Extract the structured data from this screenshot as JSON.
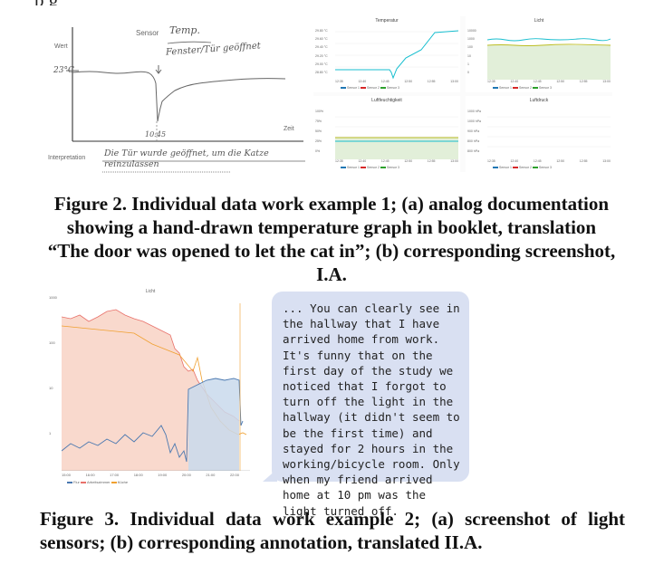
{
  "top_text_fragment": "p                                                                                     g",
  "figure2": {
    "sketch": {
      "sensor_label": "Sensor",
      "sensor_value": "Temp.",
      "annotation": "Fenster/Tür geöffnet",
      "y_axis_label": "Wert",
      "y_value": "23°C",
      "x_axis_label": "Zeit",
      "time_mark": "10:45",
      "interpretation_label": "Interpretation",
      "interpretation_text": "Die Tür wurde geöffnet, um die Katze reinzulassen"
    },
    "screenshot": {
      "panels": [
        {
          "title": "Temperatur",
          "yticks": [
            "29.80 °C",
            "29.60 °C",
            "29.40 °C",
            "29.20 °C",
            "29.00 °C",
            "28.80 °C"
          ],
          "legend": [
            "Sensor 1",
            "Sensor 2",
            "Sensor 3"
          ]
        },
        {
          "title": "Licht",
          "yticks": [
            "10000",
            "1000",
            "100",
            "10",
            "1",
            "0"
          ],
          "legend": [
            "Sensor 1",
            "Sensor 2",
            "Sensor 3"
          ]
        },
        {
          "title": "Luftfeuchtigkeit",
          "yticks": [
            "100%",
            "75%",
            "50%",
            "25%",
            "0%"
          ],
          "legend": [
            "Sensor 1",
            "Sensor 2",
            "Sensor 3"
          ]
        },
        {
          "title": "Luftdruck",
          "yticks": [
            "1000 hPa",
            "1000 hPa",
            "900 hPa",
            "800 hPa",
            "800 hPa"
          ],
          "legend": [
            "Sensor 1",
            "Sensor 2",
            "Sensor 3"
          ]
        }
      ],
      "xticks": [
        "12:35",
        "12:40",
        "12:45",
        "12:50",
        "12:55",
        "13:00"
      ],
      "colors": {
        "sensor1": "#1f77b4",
        "sensor2": "#d62728",
        "sensor3": "#2ca02c",
        "sensor_cyan": "#17becf",
        "sensor_olive": "#bcbd22"
      }
    },
    "caption": "Figure 2. Individual data work example 1; (a) analog documentation showing a hand-drawn temperature graph in booklet, translation “The door was opened to let the cat in”; (b) corresponding screenshot, I.A."
  },
  "figure3": {
    "chart": {
      "title": "Licht",
      "yticks": [
        "1000",
        "100",
        "10",
        "1"
      ],
      "xticks": [
        "15:00",
        "16:00",
        "17:00",
        "18:00",
        "19:00",
        "20:00",
        "21:00",
        "22:00"
      ],
      "legend": [
        "Flur",
        "Arbeitszimmer",
        "Küche"
      ],
      "colors": {
        "flur": "#4a78b0",
        "arbeitszimmer": "#e8716a",
        "kueche": "#f0a030",
        "flur_fill": "#c9d9ec",
        "arbeit_fill": "#f8d2c4"
      }
    },
    "annotation_text": "... You can clearly see in the hallway that I have arrived home from work. It's funny that on the first day of the study we noticed that I forgot to turn off the light in the hallway (it didn't seem to be the first time) and stayed for 2 hours in the working/bicycle room. Only when my friend arrived home at 10 pm was the light turned off.",
    "caption": "Figure 3. Individual data work example 2; (a) screenshot of light sensors; (b) corresponding annotation, translated II.A."
  }
}
